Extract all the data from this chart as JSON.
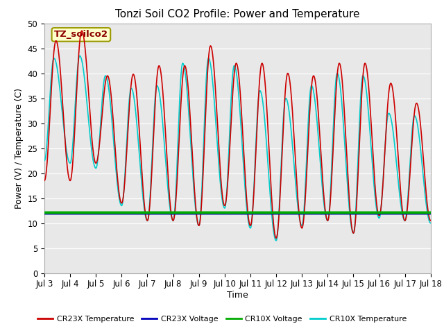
{
  "title": "Tonzi Soil CO2 Profile: Power and Temperature",
  "xlabel": "Time",
  "ylabel": "Power (V) / Temperature (C)",
  "xlim": [
    0,
    15
  ],
  "ylim": [
    0,
    50
  ],
  "yticks": [
    0,
    5,
    10,
    15,
    20,
    25,
    30,
    35,
    40,
    45,
    50
  ],
  "xtick_labels": [
    "Jul 3",
    "Jul 4",
    "Jul 5",
    "Jul 6",
    "Jul 7",
    "Jul 8",
    "Jul 9",
    "Jul 10",
    "Jul 11",
    "Jul 12",
    "Jul 13",
    "Jul 14",
    "Jul 15",
    "Jul 16",
    "Jul 17",
    "Jul 18"
  ],
  "annotation_text": "TZ_soilco2",
  "annotation_bg": "#ffffcc",
  "annotation_border": "#cccc00",
  "cr23x_temp_color": "#cc0000",
  "cr23x_volt_color": "#0000bb",
  "cr10x_volt_color": "#00aa00",
  "cr10x_temp_color": "#00cccc",
  "figure_facecolor": "#ffffff",
  "plot_facecolor": "#e8e8e8",
  "legend_labels": [
    "CR23X Temperature",
    "CR23X Voltage",
    "CR10X Voltage",
    "CR10X Temperature"
  ],
  "legend_colors": [
    "#cc0000",
    "#0000bb",
    "#00aa00",
    "#00cccc"
  ],
  "title_fontsize": 11,
  "axis_fontsize": 9,
  "tick_fontsize": 8.5,
  "cr23x_peaks": [
    46.5,
    48.5,
    39.5,
    39.8,
    41.5,
    41.5,
    45.5,
    42.0,
    42.0,
    40.0,
    39.5,
    42.0,
    42.0,
    38.0,
    34.0
  ],
  "cr23x_troughs": [
    18.5,
    22.0,
    14.0,
    10.5,
    10.5,
    9.5,
    13.5,
    9.5,
    7.0,
    9.0,
    10.5,
    8.0,
    11.5,
    10.5,
    10.5
  ],
  "cr10x_peaks": [
    43.0,
    43.5,
    39.5,
    37.0,
    37.5,
    42.0,
    43.0,
    41.5,
    36.5,
    35.0,
    37.5,
    40.0,
    39.5,
    32.0,
    31.5
  ],
  "cr10x_troughs": [
    22.0,
    21.0,
    13.5,
    10.5,
    10.5,
    9.5,
    13.0,
    9.0,
    6.5,
    9.5,
    10.5,
    8.0,
    11.0,
    10.5,
    10.0
  ],
  "voltage_level_cr23x": 11.9,
  "voltage_level_cr10x": 12.1
}
